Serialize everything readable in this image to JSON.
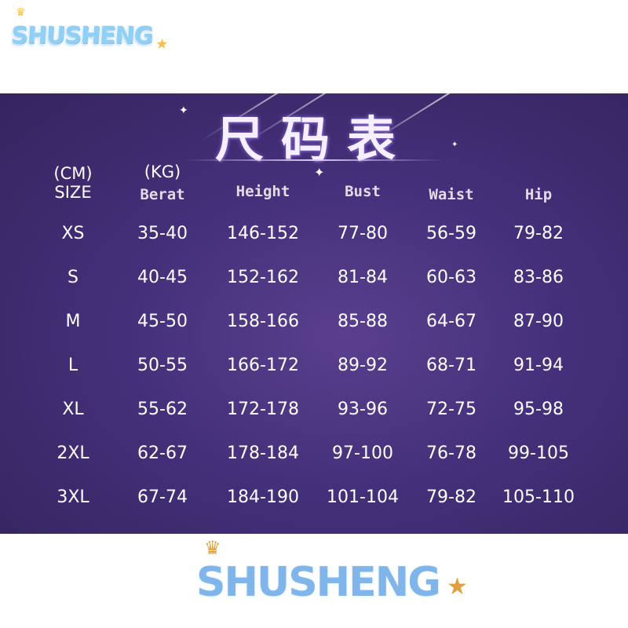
{
  "logo": {
    "text": "SHUSHENG"
  },
  "title": "尺码表",
  "watermark": "SHUSHENG",
  "colors": {
    "background": "#44307a",
    "text": "#ffffff",
    "logo": "#8fd0f4"
  },
  "headers": [
    {
      "unit": "(CM)",
      "label": "SIZE"
    },
    {
      "unit": "(KG)",
      "label": "Berat"
    },
    {
      "unit": "",
      "label": "Height"
    },
    {
      "unit": "",
      "label": "Bust"
    },
    {
      "unit": "",
      "label": "Waist"
    },
    {
      "unit": "",
      "label": "Hip"
    }
  ],
  "rows": [
    [
      "XS",
      "35-40",
      "146-152",
      "77-80",
      "56-59",
      "79-82"
    ],
    [
      "S",
      "40-45",
      "152-162",
      "81-84",
      "60-63",
      "83-86"
    ],
    [
      "M",
      "45-50",
      "158-166",
      "85-88",
      "64-67",
      "87-90"
    ],
    [
      "L",
      "50-55",
      "166-172",
      "89-92",
      "68-71",
      "91-94"
    ],
    [
      "XL",
      "55-62",
      "172-178",
      "93-96",
      "72-75",
      "95-98"
    ],
    [
      "2XL",
      "62-67",
      "178-184",
      "97-100",
      "76-78",
      "99-105"
    ],
    [
      "3XL",
      "67-74",
      "184-190",
      "101-104",
      "79-82",
      "105-110"
    ]
  ]
}
